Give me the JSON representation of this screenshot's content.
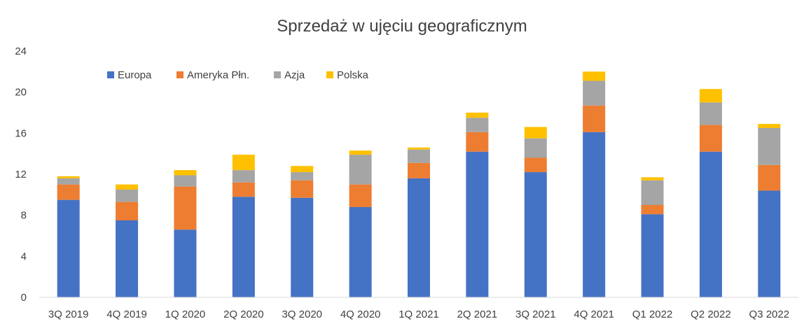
{
  "chart_data": {
    "type": "bar",
    "stacked": true,
    "title": "Sprzedaż w ujęciu geograficznym",
    "xlabel": "",
    "ylabel": "",
    "ylim": [
      0,
      24
    ],
    "yticks": [
      "0",
      "4",
      "8",
      "12",
      "16",
      "20",
      "24"
    ],
    "grid": false,
    "legend_position": "top-left",
    "categories": [
      "3Q 2019",
      "4Q 2019",
      "1Q 2020",
      "2Q 2020",
      "3Q 2020",
      "4Q 2020",
      "1Q 2021",
      "2Q 2021",
      "3Q 2021",
      "4Q 2021",
      "Q1 2022",
      "Q2 2022",
      "Q3 2022"
    ],
    "series": [
      {
        "name": "Europa",
        "color": "#4472c4",
        "values": [
          9.5,
          7.5,
          6.6,
          9.8,
          9.7,
          8.8,
          11.6,
          14.2,
          12.2,
          16.1,
          8.1,
          14.2,
          10.4
        ]
      },
      {
        "name": "Ameryka Płn.",
        "color": "#ed7d31",
        "values": [
          1.5,
          1.8,
          4.2,
          1.4,
          1.7,
          2.2,
          1.5,
          1.9,
          1.4,
          2.6,
          0.9,
          2.6,
          2.5
        ]
      },
      {
        "name": "Azja",
        "color": "#a5a5a5",
        "values": [
          0.6,
          1.2,
          1.1,
          1.2,
          0.8,
          2.9,
          1.3,
          1.4,
          1.9,
          2.4,
          2.4,
          2.2,
          3.6
        ]
      },
      {
        "name": "Polska",
        "color": "#ffc000",
        "values": [
          0.2,
          0.5,
          0.5,
          1.5,
          0.6,
          0.4,
          0.2,
          0.5,
          1.1,
          0.9,
          0.3,
          1.3,
          0.4
        ]
      }
    ]
  }
}
